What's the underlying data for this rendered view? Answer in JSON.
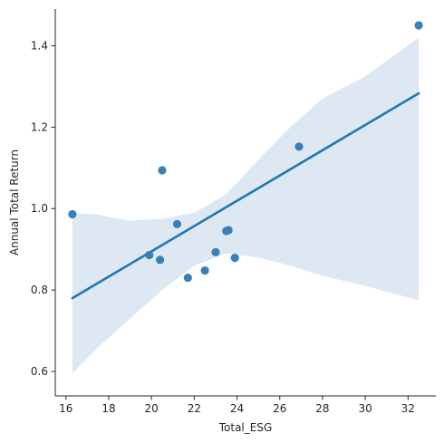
{
  "chart_data": {
    "type": "scatter",
    "title": "",
    "xlabel": "Total_ESG",
    "ylabel": "Annual Total Return",
    "xlim": [
      15.5,
      33.3
    ],
    "ylim": [
      0.54,
      1.49
    ],
    "xticks": [
      16,
      18,
      20,
      22,
      24,
      26,
      28,
      30,
      32
    ],
    "yticks": [
      0.6,
      0.8,
      1.0,
      1.2,
      1.4
    ],
    "xtick_labels": [
      "16",
      "18",
      "20",
      "22",
      "24",
      "26",
      "28",
      "30",
      "32"
    ],
    "ytick_labels": [
      "0.6",
      "0.8",
      "1.0",
      "1.2",
      "1.4"
    ],
    "grid": false,
    "points": [
      {
        "x": 16.3,
        "y": 0.986
      },
      {
        "x": 19.9,
        "y": 0.886
      },
      {
        "x": 20.4,
        "y": 0.874
      },
      {
        "x": 20.5,
        "y": 1.094
      },
      {
        "x": 21.2,
        "y": 0.962
      },
      {
        "x": 21.7,
        "y": 0.83
      },
      {
        "x": 22.5,
        "y": 0.848
      },
      {
        "x": 23.0,
        "y": 0.893
      },
      {
        "x": 23.5,
        "y": 0.945
      },
      {
        "x": 23.6,
        "y": 0.947
      },
      {
        "x": 23.9,
        "y": 0.879
      },
      {
        "x": 26.9,
        "y": 1.152
      },
      {
        "x": 32.5,
        "y": 1.45
      }
    ],
    "regression": {
      "x": [
        16.3,
        32.5
      ],
      "y": [
        0.78,
        1.283
      ]
    },
    "confidence_band": {
      "x": [
        16.3,
        17.5,
        19.0,
        20.5,
        22.0,
        23.5,
        25.0,
        26.5,
        28.0,
        30.0,
        32.5
      ],
      "upper": [
        0.99,
        0.985,
        0.97,
        0.975,
        0.99,
        1.035,
        1.12,
        1.2,
        1.27,
        1.325,
        1.42
      ],
      "lower": [
        0.595,
        0.66,
        0.73,
        0.8,
        0.86,
        0.89,
        0.88,
        0.86,
        0.835,
        0.81,
        0.775
      ]
    },
    "colors": {
      "points": "#3a7fb8",
      "line": "#1f77b4",
      "band": "#dde8f3",
      "axis": "#262626"
    }
  }
}
